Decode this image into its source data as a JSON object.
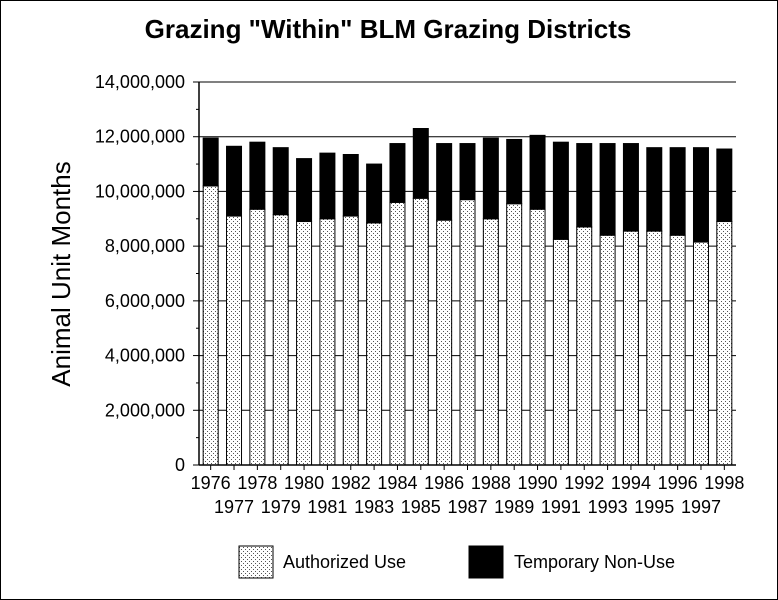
{
  "chart_data": {
    "type": "bar",
    "stacked": true,
    "title": "Grazing \"Within\" BLM Grazing Districts",
    "ylabel": "Animal Unit Months",
    "xlabel": "",
    "ylim": [
      0,
      14000000
    ],
    "yticks": [
      "0",
      "2,000,000",
      "4,000,000",
      "6,000,000",
      "8,000,000",
      "10,000,000",
      "12,000,000",
      "14,000,000"
    ],
    "categories": [
      "1976",
      "1977",
      "1978",
      "1979",
      "1980",
      "1981",
      "1982",
      "1983",
      "1984",
      "1985",
      "1986",
      "1987",
      "1988",
      "1989",
      "1990",
      "1991",
      "1992",
      "1993",
      "1994",
      "1995",
      "1996",
      "1997",
      "1998"
    ],
    "grid": true,
    "legend_position": "bottom",
    "series": [
      {
        "name": "Authorized Use",
        "color": "#ffffff",
        "pattern": "dotted",
        "values": [
          10200000,
          9100000,
          9350000,
          9150000,
          8900000,
          9000000,
          9100000,
          8850000,
          9600000,
          9750000,
          8950000,
          9700000,
          9000000,
          9550000,
          9350000,
          8250000,
          8700000,
          8400000,
          8550000,
          8550000,
          8400000,
          8150000,
          8900000
        ]
      },
      {
        "name": "Temporary Non-Use",
        "color": "#000000",
        "pattern": "solid",
        "values": [
          1750000,
          2550000,
          2450000,
          2450000,
          2300000,
          2400000,
          2250000,
          2150000,
          2150000,
          2550000,
          2800000,
          2050000,
          2950000,
          2350000,
          2700000,
          3550000,
          3050000,
          3350000,
          3200000,
          3050000,
          3200000,
          3450000,
          2650000
        ]
      }
    ]
  }
}
